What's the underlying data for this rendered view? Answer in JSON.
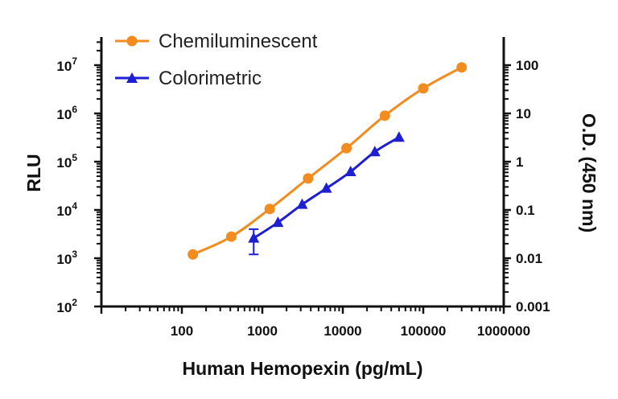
{
  "chart_data": {
    "type": "line",
    "title": "",
    "xlabel": "Human Hemopexin (pg/mL)",
    "ylabel_left": "RLU",
    "ylabel_right": "O.D. (450 nm)",
    "x_scale": "log",
    "y_left_scale": "log",
    "y_right_scale": "log",
    "xlim": [
      10,
      1000000
    ],
    "ylim_left": [
      100,
      10000000
    ],
    "ylim_right": [
      0.001,
      100
    ],
    "x_ticks": [
      "100",
      "1000",
      "10000",
      "100000",
      "1000000"
    ],
    "y_left_ticks": [
      {
        "base": "10",
        "exp": "2"
      },
      {
        "base": "10",
        "exp": "3"
      },
      {
        "base": "10",
        "exp": "4"
      },
      {
        "base": "10",
        "exp": "5"
      },
      {
        "base": "10",
        "exp": "6"
      },
      {
        "base": "10",
        "exp": "7"
      }
    ],
    "y_right_ticks": [
      "0.001",
      "0.01",
      "0.1",
      "1",
      "10",
      "100"
    ],
    "grid": false,
    "legend_position": "top-left",
    "series": [
      {
        "name": "Chemiluminescent",
        "axis": "left",
        "marker": "circle",
        "color": "#F28C1E",
        "x": [
          137,
          412,
          1235,
          3704,
          11111,
          33333,
          100000,
          300000
        ],
        "y": [
          1200,
          2800,
          10500,
          45000,
          190000,
          900000,
          3300000,
          9000000
        ]
      },
      {
        "name": "Colorimetric",
        "axis": "right",
        "marker": "triangle",
        "color": "#1E1ED2",
        "x": [
          781,
          1563,
          3125,
          6250,
          12500,
          25000,
          50000
        ],
        "y": [
          0.026,
          0.055,
          0.13,
          0.28,
          0.62,
          1.6,
          3.2
        ],
        "error": [
          0.014,
          0,
          0,
          0,
          0,
          0,
          0
        ]
      }
    ]
  }
}
